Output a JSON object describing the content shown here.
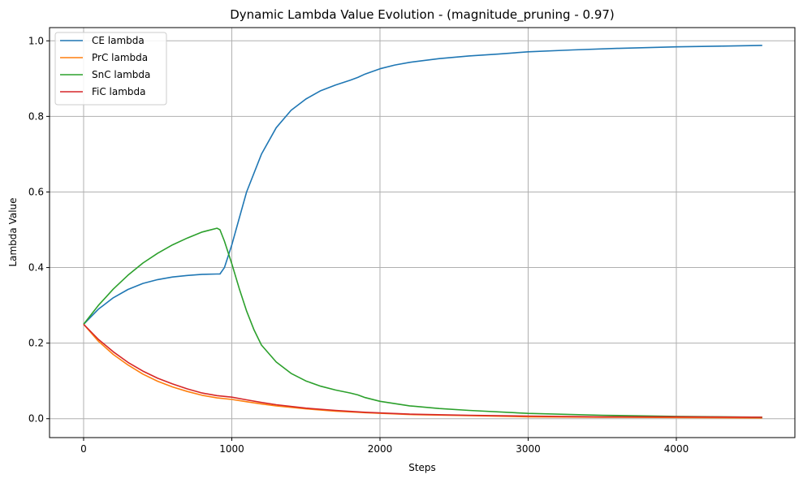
{
  "chart_data": {
    "type": "line",
    "title": "Dynamic Lambda Value Evolution - (magnitude_pruning - 0.97)",
    "xlabel": "Steps",
    "ylabel": "Lambda Value",
    "xlim": [
      -230,
      4800
    ],
    "ylim": [
      -0.05,
      1.035
    ],
    "xticks": [
      0,
      1000,
      2000,
      3000,
      4000
    ],
    "yticks": [
      0.0,
      0.2,
      0.4,
      0.6,
      0.8,
      1.0
    ],
    "xtick_labels": [
      "0",
      "1000",
      "2000",
      "3000",
      "4000"
    ],
    "ytick_labels": [
      "0.0",
      "0.2",
      "0.4",
      "0.6",
      "0.8",
      "1.0"
    ],
    "grid": true,
    "legend_position": "top-left",
    "series": [
      {
        "name": "CE lambda",
        "color": "#1f77b4",
        "x": [
          0,
          100,
          200,
          300,
          400,
          500,
          600,
          700,
          800,
          900,
          920,
          950,
          1000,
          1050,
          1100,
          1200,
          1300,
          1400,
          1500,
          1600,
          1700,
          1800,
          1850,
          1900,
          2000,
          2100,
          2200,
          2400,
          2600,
          2800,
          3000,
          3300,
          3600,
          4000,
          4300,
          4580
        ],
        "y": [
          0.25,
          0.29,
          0.32,
          0.342,
          0.358,
          0.368,
          0.375,
          0.379,
          0.382,
          0.383,
          0.383,
          0.4,
          0.46,
          0.53,
          0.6,
          0.7,
          0.77,
          0.816,
          0.846,
          0.868,
          0.883,
          0.896,
          0.903,
          0.912,
          0.926,
          0.936,
          0.943,
          0.953,
          0.96,
          0.965,
          0.971,
          0.976,
          0.98,
          0.984,
          0.986,
          0.988
        ]
      },
      {
        "name": "PrC lambda",
        "color": "#ff7f0e",
        "x": [
          0,
          100,
          200,
          300,
          400,
          500,
          600,
          700,
          800,
          900,
          1000,
          1100,
          1200,
          1300,
          1500,
          1700,
          1900,
          2200,
          2600,
          3000,
          3500,
          4000,
          4580
        ],
        "y": [
          0.25,
          0.205,
          0.17,
          0.142,
          0.118,
          0.099,
          0.084,
          0.072,
          0.062,
          0.055,
          0.051,
          0.045,
          0.039,
          0.034,
          0.026,
          0.02,
          0.016,
          0.011,
          0.008,
          0.005,
          0.004,
          0.003,
          0.002
        ]
      },
      {
        "name": "SnC lambda",
        "color": "#2ca02c",
        "x": [
          0,
          100,
          200,
          300,
          400,
          500,
          600,
          700,
          800,
          900,
          920,
          950,
          1000,
          1050,
          1100,
          1150,
          1200,
          1300,
          1400,
          1500,
          1600,
          1700,
          1800,
          1850,
          1900,
          2000,
          2200,
          2400,
          2600,
          3000,
          3500,
          4000,
          4580
        ],
        "y": [
          0.25,
          0.3,
          0.343,
          0.38,
          0.412,
          0.438,
          0.46,
          0.478,
          0.494,
          0.504,
          0.5,
          0.47,
          0.41,
          0.345,
          0.285,
          0.235,
          0.195,
          0.15,
          0.12,
          0.1,
          0.086,
          0.076,
          0.068,
          0.063,
          0.056,
          0.046,
          0.034,
          0.027,
          0.022,
          0.014,
          0.009,
          0.006,
          0.004
        ]
      },
      {
        "name": "FiC lambda",
        "color": "#d62728",
        "x": [
          0,
          100,
          200,
          300,
          400,
          500,
          600,
          700,
          800,
          900,
          1000,
          1100,
          1200,
          1300,
          1500,
          1700,
          1900,
          2200,
          2600,
          3000,
          3500,
          4000,
          4580
        ],
        "y": [
          0.25,
          0.21,
          0.177,
          0.149,
          0.126,
          0.107,
          0.092,
          0.079,
          0.068,
          0.061,
          0.057,
          0.05,
          0.043,
          0.037,
          0.028,
          0.022,
          0.017,
          0.012,
          0.009,
          0.007,
          0.005,
          0.005,
          0.004
        ]
      }
    ]
  }
}
